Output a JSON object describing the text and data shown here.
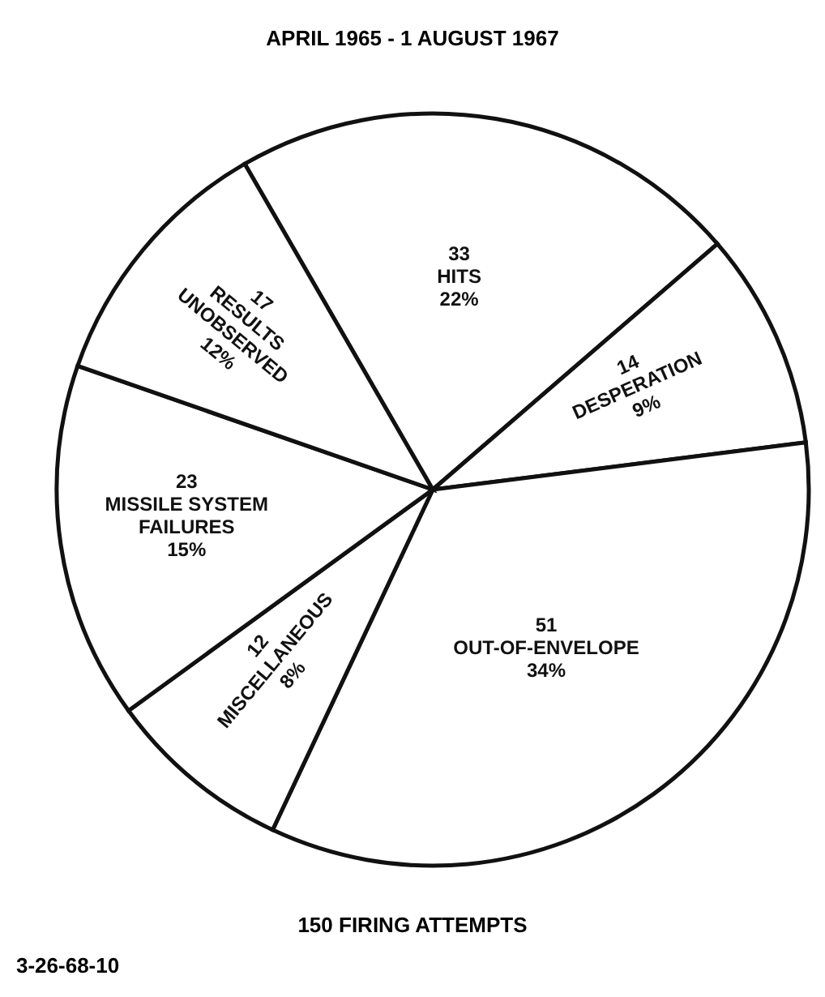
{
  "chart_data": {
    "type": "pie",
    "title": "APRIL 1965 - 1 AUGUST 1967",
    "categories": [
      "HITS",
      "DESPERATION",
      "OUT-OF-ENVELOPE",
      "MISCELLANEOUS",
      "MISSILE SYSTEM FAILURES",
      "RESULTS UNOBSERVED"
    ],
    "values": [
      33,
      14,
      51,
      12,
      23,
      17
    ],
    "colors": [
      "#ffffff",
      "#ffffff",
      "#ffffff",
      "#ffffff",
      "#ffffff",
      "#ffffff"
    ],
    "data_labels": true,
    "legend": false,
    "annotations": [
      {
        "text": "22%",
        "x": "HITS"
      },
      {
        "text": "9%",
        "x": "DESPERATION"
      },
      {
        "text": "34%",
        "x": "OUT-OF-ENVELOPE"
      },
      {
        "text": "8%",
        "x": "MISCELLANEOUS"
      },
      {
        "text": "15%",
        "x": "MISSILE SYSTEM FAILURES"
      },
      {
        "text": "12%",
        "x": "RESULTS UNOBSERVED"
      },
      "150 FIRING ATTEMPTS",
      "3-26-68-10"
    ]
  }
}
